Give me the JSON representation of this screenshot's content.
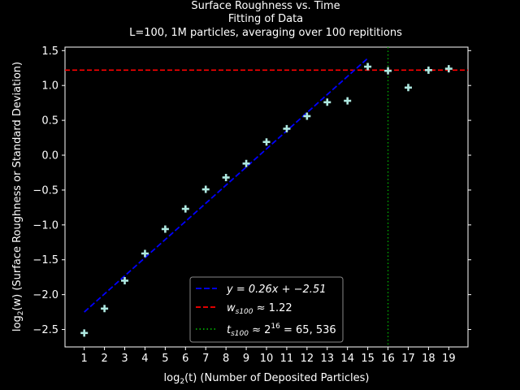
{
  "chart_data": {
    "type": "scatter",
    "title": "Surface Roughness vs. Time",
    "subtitle_lines": [
      "Fitting of Data",
      "L=100, 1M particles, averaging over 100 repititions"
    ],
    "xlabel_math": "log",
    "xlabel_math_sub": "2",
    "xlabel_rest": "(t) (Number of Deposited Particles)",
    "ylabel_math": "log",
    "ylabel_math_sub": "2",
    "ylabel_rest": "(w) (Surface Roughness or Standard Deviation)",
    "xlim": [
      0.05,
      19.95
    ],
    "ylim": [
      -2.75,
      1.55
    ],
    "xticks": [
      1,
      2,
      3,
      4,
      5,
      6,
      7,
      8,
      9,
      10,
      11,
      12,
      13,
      14,
      15,
      16,
      17,
      18,
      19
    ],
    "yticks": [
      -2.5,
      -2.0,
      -1.5,
      -1.0,
      -0.5,
      0.0,
      0.5,
      1.0,
      1.5
    ],
    "ytick_labels": [
      "−2.5",
      "−2.0",
      "−1.5",
      "−1.0",
      "−0.5",
      "0.0",
      "0.5",
      "1.0",
      "1.5"
    ],
    "grid": false,
    "legend_placement": "lower-center",
    "series": [
      {
        "kind": "points",
        "marker": "plus",
        "color": "#aee8e0",
        "x": [
          1,
          2,
          3,
          4,
          5,
          6,
          7,
          8,
          9,
          10,
          11,
          12,
          13,
          14,
          15,
          16,
          17,
          18,
          19
        ],
        "y": [
          -2.55,
          -2.2,
          -1.8,
          -1.41,
          -1.06,
          -0.77,
          -0.49,
          -0.32,
          -0.12,
          0.19,
          0.38,
          0.56,
          0.76,
          0.78,
          1.27,
          1.21,
          0.97,
          1.22,
          1.24
        ]
      }
    ],
    "fit_line": {
      "slope": 0.26,
      "intercept": -2.51,
      "x_range": [
        1,
        15
      ],
      "color": "#0000ff",
      "style": "dashed",
      "legend": "y = 0.26x + −2.51"
    },
    "saturation_line": {
      "y": 1.22,
      "color": "#ff0000",
      "style": "dashed",
      "legend": "w_s100 ≈ 1.22"
    },
    "crossover_line": {
      "x": 16,
      "color": "#00aa00",
      "style": "dotted",
      "legend": "t_s100 ≈ 2^16 = 65,536"
    },
    "legend_items": [
      {
        "main": "y = 0.26x + −2.51"
      },
      {
        "main": "w",
        "sub": "s100",
        "rest": " ≈ 1.22"
      },
      {
        "main": "t",
        "sub": "s100",
        "rest": " ≈ 2",
        "sup": "16",
        "rest2": " = 65, 536"
      }
    ]
  }
}
